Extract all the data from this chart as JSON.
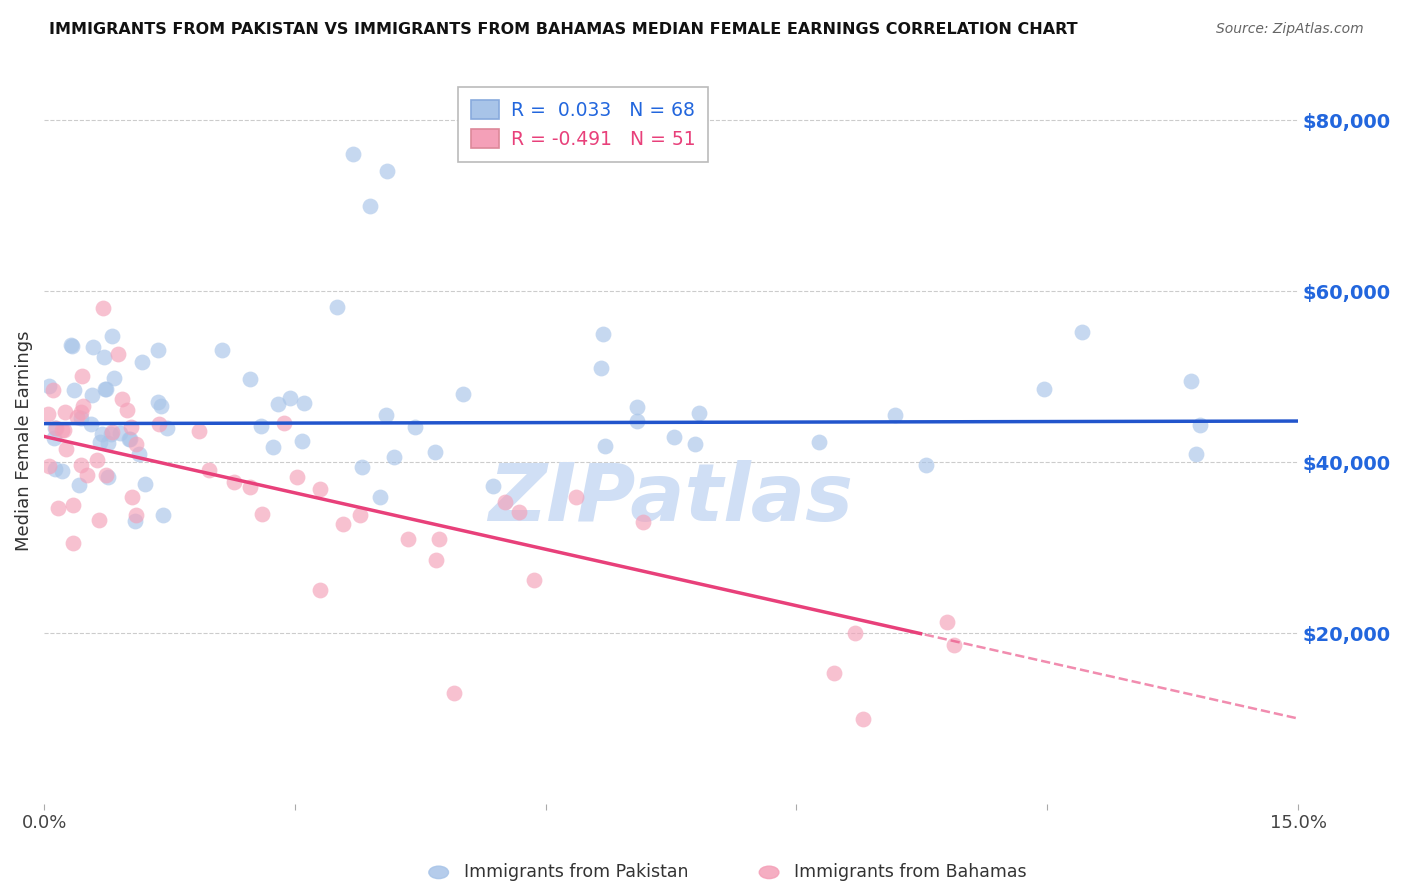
{
  "title": "IMMIGRANTS FROM PAKISTAN VS IMMIGRANTS FROM BAHAMAS MEDIAN FEMALE EARNINGS CORRELATION CHART",
  "source": "Source: ZipAtlas.com",
  "ylabel": "Median Female Earnings",
  "right_ytick_labels": [
    "$80,000",
    "$60,000",
    "$40,000",
    "$20,000"
  ],
  "right_ytick_values": [
    80000,
    60000,
    40000,
    20000
  ],
  "R_pakistan": 0.033,
  "N_pakistan": 68,
  "R_bahamas": -0.491,
  "N_bahamas": 51,
  "color_pakistan": "#a8c4e8",
  "color_bahamas": "#f4a0b8",
  "line_color_pakistan": "#2255cc",
  "line_color_bahamas": "#e8407a",
  "watermark": "ZIPatlas",
  "watermark_color": "#d0dff5",
  "background_color": "#ffffff",
  "grid_color": "#cccccc",
  "ytick_label_color": "#2266dd",
  "title_color": "#111111",
  "legend_r1_color": "#2266dd",
  "legend_n1_color": "#2266dd",
  "legend_r2_color": "#e8407a",
  "legend_n2_color": "#e8407a",
  "xlim": [
    0,
    0.15
  ],
  "ylim": [
    0,
    85000
  ],
  "pk_intercept": 44500,
  "pk_slope": 2000,
  "bh_intercept": 43000,
  "bh_slope": -220000
}
